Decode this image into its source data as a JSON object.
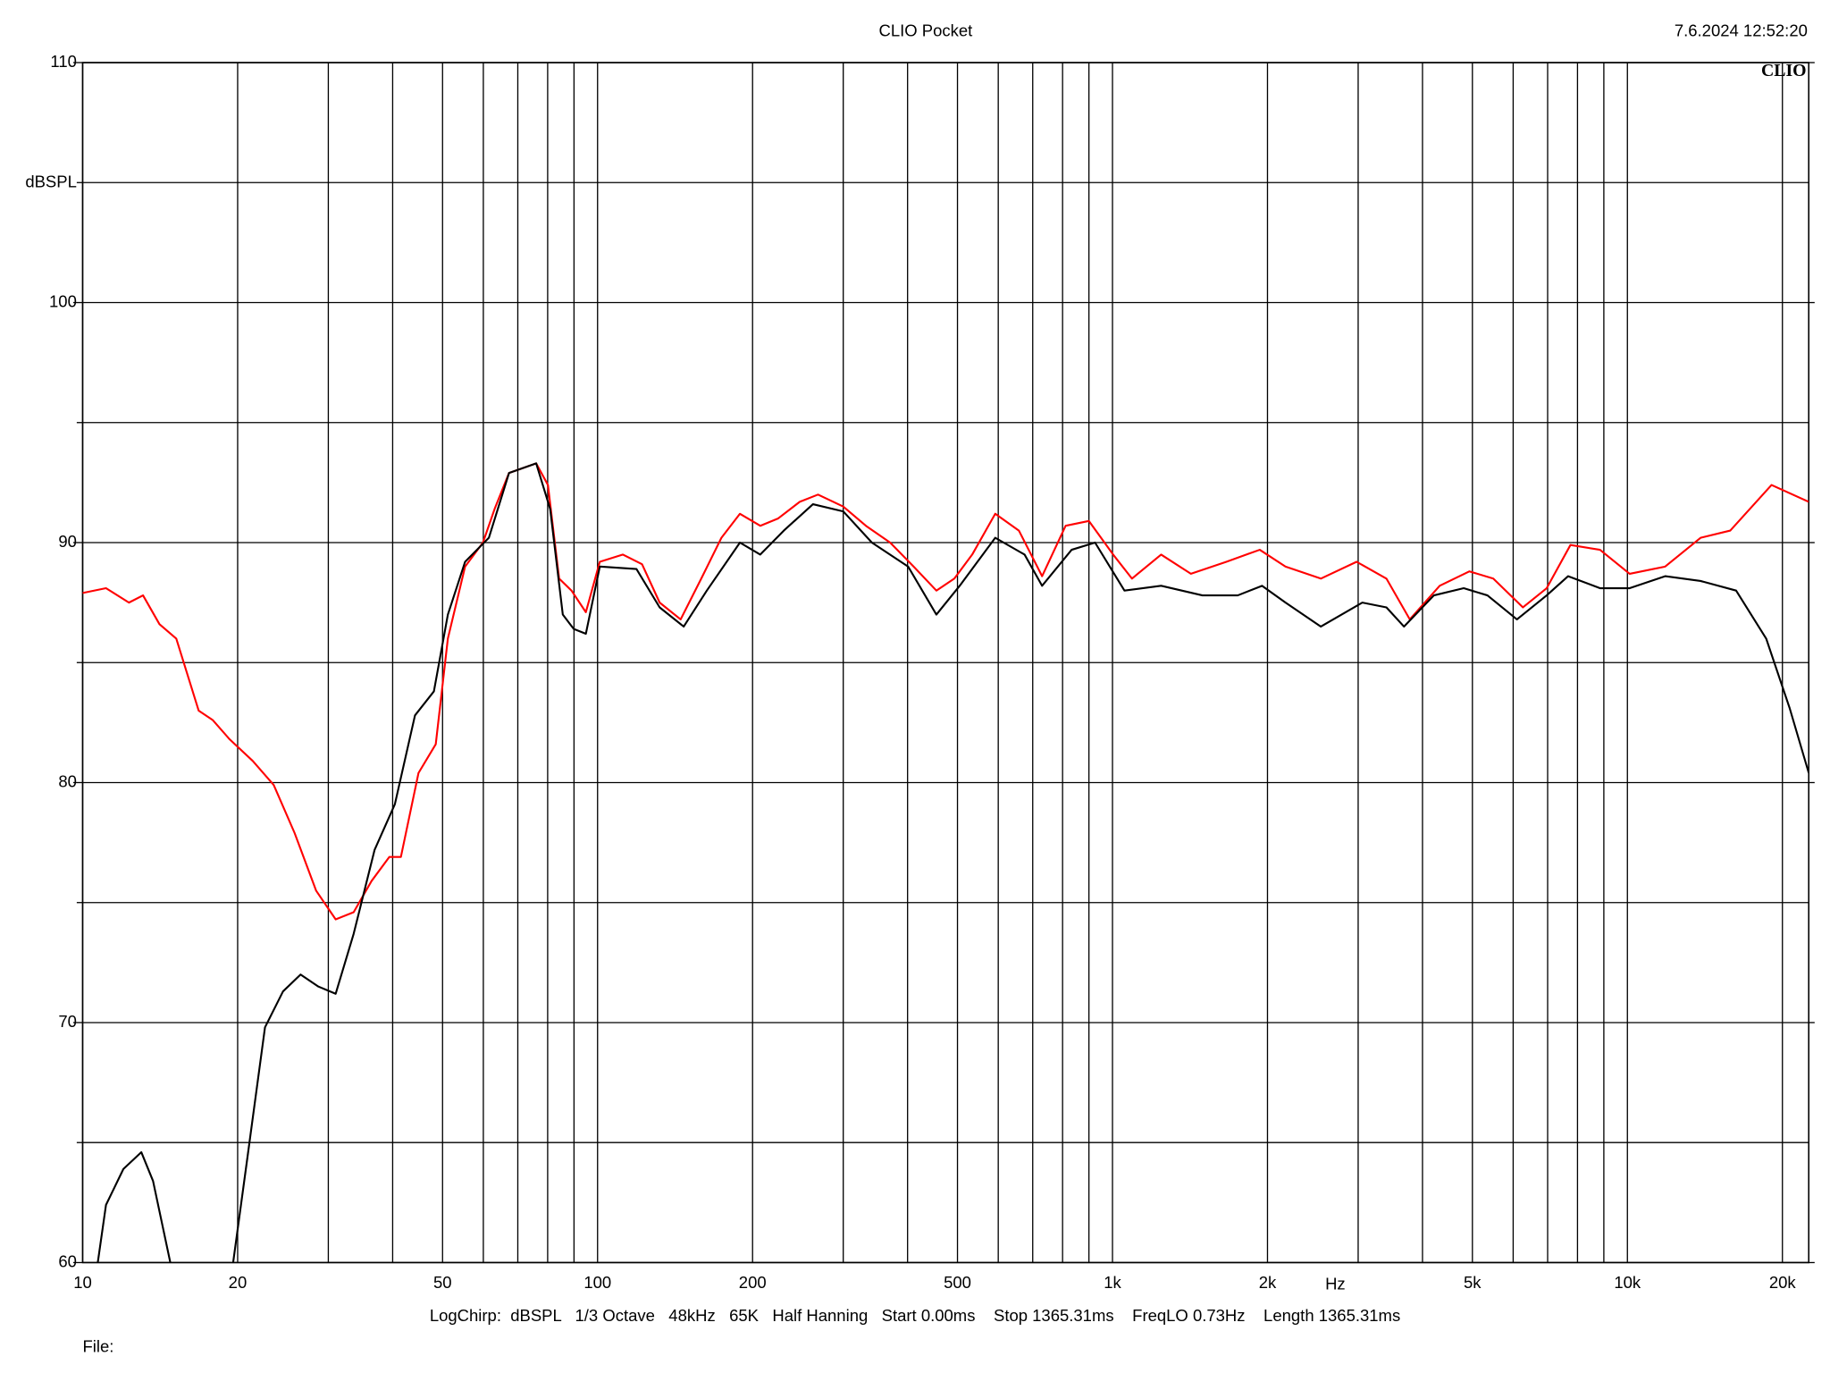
{
  "chart_data": {
    "type": "line",
    "title": "CLIO Pocket",
    "timestamp": "7.6.2024 12:52:20",
    "logo": "CLIO",
    "y_label": "dBSPL",
    "x_label": "Hz",
    "info": "LogChirp:  dBSPL   1/3 Octave   48kHz   65K   Half Hanning   Start 0.00ms    Stop 1365.31ms    FreqLO 0.73Hz    Length 1365.31ms",
    "file_label": "File:",
    "xscale": "log",
    "grid": true,
    "xlim": [
      10,
      22500
    ],
    "ylim": [
      60,
      110
    ],
    "xticks": [
      10,
      20,
      50,
      100,
      200,
      500,
      {
        "value": 1000,
        "label": "1k"
      },
      {
        "value": 2000,
        "label": "2k"
      },
      {
        "value": 5000,
        "label": "5k"
      },
      {
        "value": 10000,
        "label": "10k"
      },
      {
        "value": 20000,
        "label": "20k"
      }
    ],
    "x_minor_ticks": [
      30,
      40,
      60,
      70,
      80,
      90,
      300,
      400,
      600,
      700,
      800,
      900,
      3000,
      4000,
      6000,
      7000,
      8000,
      9000
    ],
    "yticks": [
      60,
      70,
      80,
      90,
      100,
      110
    ],
    "y_minor_ticks": [
      65,
      75,
      85,
      95,
      105
    ],
    "series": [
      {
        "color": "#ff0000",
        "x": [
          10,
          11.1,
          12.3,
          13.1,
          14.1,
          15.2,
          16.8,
          17.9,
          19.3,
          21.4,
          23.5,
          25.8,
          28.4,
          31,
          33.6,
          36.4,
          39.4,
          41.5,
          44.9,
          48.5,
          51.2,
          55.3,
          59.9,
          63.1,
          67.3,
          76,
          80.1,
          84.2,
          89,
          94.9,
          101,
          112,
          122,
          132,
          145,
          159,
          174,
          189,
          207,
          224,
          247,
          268,
          300,
          332,
          370,
          411,
          455,
          493,
          534,
          592,
          658,
          730,
          811,
          900,
          1003,
          1091,
          1243,
          1420,
          1664,
          1932,
          2168,
          2539,
          2979,
          3404,
          3779,
          4320,
          4934,
          5489,
          6268,
          6970,
          7752,
          8846,
          10100,
          11840,
          13870,
          15840,
          19050,
          22500
        ],
        "values": [
          87.9,
          88.1,
          87.5,
          87.8,
          86.6,
          86.0,
          83.0,
          82.6,
          81.8,
          80.9,
          79.9,
          77.9,
          75.5,
          74.3,
          74.6,
          75.9,
          76.9,
          76.9,
          80.4,
          81.6,
          86.0,
          89.0,
          90.0,
          91.4,
          92.9,
          93.3,
          92.4,
          88.5,
          88.0,
          87.1,
          89.2,
          89.5,
          89.1,
          87.5,
          86.8,
          88.5,
          90.2,
          91.2,
          90.7,
          91.0,
          91.7,
          92.0,
          91.5,
          90.7,
          90.0,
          89.0,
          88.0,
          88.5,
          89.5,
          91.2,
          90.5,
          88.6,
          90.7,
          90.9,
          89.5,
          88.5,
          89.5,
          88.7,
          89.2,
          89.7,
          89.0,
          88.5,
          89.2,
          88.5,
          86.8,
          88.2,
          88.8,
          88.5,
          87.3,
          88.1,
          89.9,
          89.7,
          88.7,
          89.0,
          90.2,
          90.5,
          92.4,
          91.7
        ]
      },
      {
        "color": "#000000",
        "x": [
          10.7,
          11.1,
          12,
          13,
          13.7,
          14.8,
          17,
          19.6,
          20.9,
          22.6,
          24.5,
          26.5,
          28.7,
          31,
          33.6,
          36.9,
          40.4,
          44.2,
          48.1,
          51.2,
          55.3,
          61.5,
          67.3,
          76,
          80.9,
          85.6,
          89.9,
          94.9,
          101,
          119,
          132,
          147,
          163,
          189,
          207,
          230,
          262,
          300,
          341,
          401,
          455,
          505,
          592,
          675,
          730,
          833,
          925,
          1055,
          1243,
          1495,
          1751,
          1952,
          2168,
          2539,
          3056,
          3404,
          3682,
          4209,
          4810,
          5348,
          6102,
          6970,
          7672,
          8846,
          10100,
          11840,
          13870,
          16260,
          18600,
          20660,
          22500
        ],
        "values": [
          60.0,
          62.4,
          63.9,
          64.6,
          63.4,
          60.0,
          null,
          60.0,
          64.4,
          69.8,
          71.3,
          72.0,
          71.5,
          71.2,
          73.7,
          77.2,
          79.1,
          82.8,
          83.8,
          87.0,
          89.2,
          90.2,
          92.9,
          93.3,
          91.4,
          87.0,
          86.4,
          86.2,
          89.0,
          88.9,
          87.3,
          86.5,
          88.0,
          90.0,
          89.5,
          90.5,
          91.6,
          91.3,
          90.0,
          89.0,
          87.0,
          88.2,
          90.2,
          89.5,
          88.2,
          89.7,
          90.0,
          88.0,
          88.2,
          87.8,
          87.8,
          88.2,
          87.5,
          86.5,
          87.5,
          87.3,
          86.5,
          87.8,
          88.1,
          87.8,
          86.8,
          87.8,
          88.6,
          88.1,
          88.1,
          88.6,
          88.4,
          88.0,
          86.0,
          83.1,
          80.4
        ]
      }
    ]
  }
}
